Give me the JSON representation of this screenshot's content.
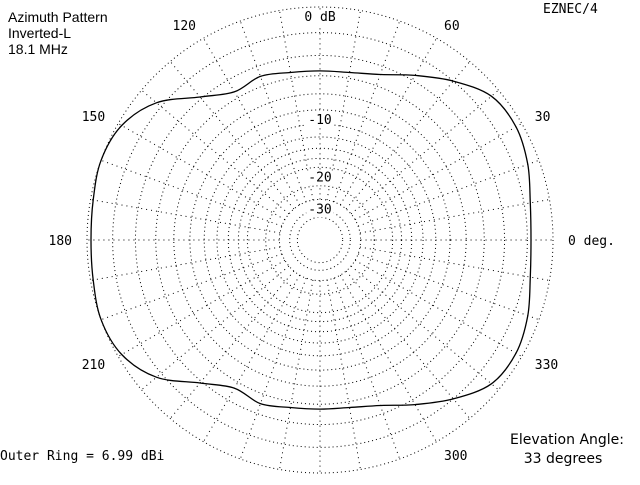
{
  "chart_data": {
    "type": "polar",
    "title": "Azimuth Pattern",
    "subtitle": "Inverted-L",
    "frequency": "18.1 MHz",
    "program": "EZNEC/4",
    "outer_ring_label": "Outer Ring = 6.99 dBi",
    "elevation_heading": "Elevation Angle:",
    "elevation_value": "33 degrees",
    "radial_scale": {
      "unit": "dB",
      "outer_ring_dbi": 6.99,
      "rings_db": [
        0,
        -2,
        -4,
        -6,
        -8,
        -10,
        -12,
        -14,
        -16,
        -18,
        -20,
        -25,
        -30,
        -35,
        -40
      ],
      "labeled_rings": [
        {
          "db": 0,
          "text": "0 dB"
        },
        {
          "db": -10,
          "text": "-10"
        },
        {
          "db": -20,
          "text": "-20"
        },
        {
          "db": -30,
          "text": "-30"
        }
      ]
    },
    "angle_labels": [
      {
        "deg": 0,
        "text": "0 deg."
      },
      {
        "deg": 30,
        "text": "30"
      },
      {
        "deg": 60,
        "text": "60"
      },
      {
        "deg": 120,
        "text": "120"
      },
      {
        "deg": 150,
        "text": "150"
      },
      {
        "deg": 180,
        "text": "180"
      },
      {
        "deg": 210,
        "text": "210"
      },
      {
        "deg": 300,
        "text": "300"
      },
      {
        "deg": 330,
        "text": "330"
      }
    ],
    "spoke_step_deg": 10,
    "series": [
      {
        "name": "Azimuth gain (dB relative to outer ring)",
        "azimuth_deg": [
          0,
          10,
          20,
          30,
          40,
          50,
          60,
          70,
          80,
          90,
          100,
          110,
          120,
          130,
          140,
          150,
          160,
          170,
          180,
          190,
          200,
          210,
          220,
          230,
          240,
          250,
          260,
          270,
          280,
          290,
          300,
          310,
          320,
          330,
          340,
          350
        ],
        "gain_db": [
          -1.7,
          -1.5,
          -0.9,
          -0.5,
          -0.7,
          -2.0,
          -3.5,
          -4.8,
          -5.4,
          -5.5,
          -5.4,
          -5.0,
          -5.3,
          -3.8,
          -1.5,
          -0.3,
          0.0,
          -0.2,
          -0.3,
          -0.2,
          0.0,
          -0.3,
          -1.5,
          -3.8,
          -5.3,
          -5.0,
          -5.4,
          -5.5,
          -5.4,
          -4.8,
          -3.5,
          -2.0,
          -0.7,
          -0.5,
          -0.9,
          -1.5
        ]
      }
    ]
  }
}
